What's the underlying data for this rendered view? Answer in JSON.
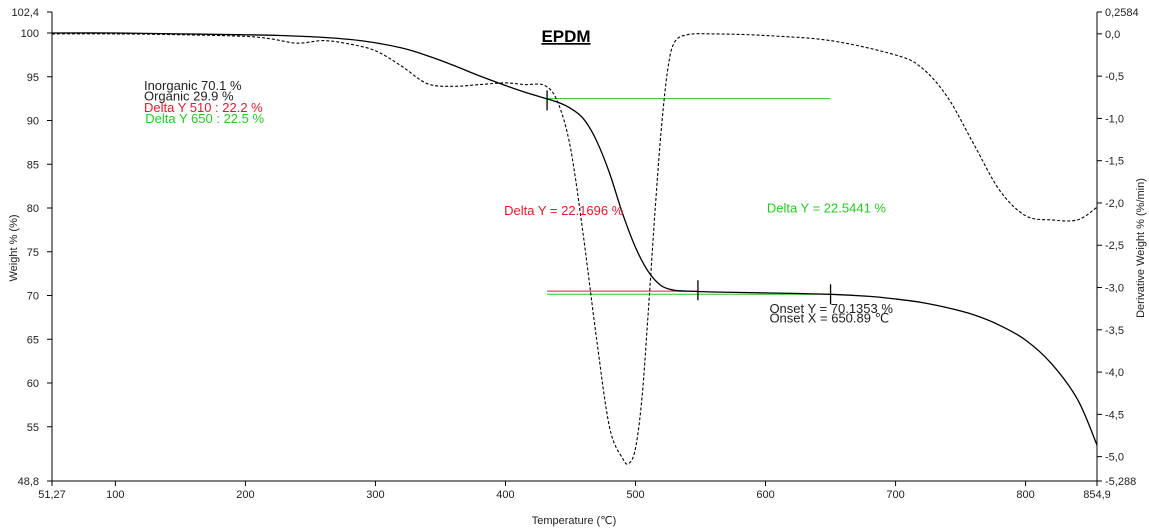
{
  "chart_data": {
    "type": "line",
    "title": "EPDM",
    "xlabel": "Temperature (℃)",
    "ylabel": "Weight % (%)",
    "y2label": "Derivative Weight % (%/min)",
    "xlim": [
      51.27,
      854.9
    ],
    "ylim": [
      48.8,
      102.4
    ],
    "y2lim": [
      -5.288,
      0.2584
    ],
    "x_ticks": [
      100,
      200,
      300,
      400,
      500,
      600,
      700,
      800
    ],
    "x_tick_labels": [
      "100",
      "200",
      "300",
      "400",
      "500",
      "600",
      "700",
      "800"
    ],
    "x_end_labels": [
      "51,27",
      "854,9"
    ],
    "y_ticks": [
      55,
      60,
      65,
      70,
      75,
      80,
      85,
      90,
      95,
      100
    ],
    "y_tick_labels": [
      "55",
      "60",
      "65",
      "70",
      "75",
      "80",
      "85",
      "90",
      "95",
      "100"
    ],
    "y_end_labels": [
      "48,8",
      "102,4"
    ],
    "y2_ticks": [
      -5.0,
      -4.5,
      -4.0,
      -3.5,
      -3.0,
      -2.5,
      -2.0,
      -1.5,
      -1.0,
      -0.5,
      0.0
    ],
    "y2_tick_labels": [
      "-5,0",
      "-4,5",
      "-4,0",
      "-3,5",
      "-3,0",
      "-2,5",
      "-2,0",
      "-1,5",
      "-1,0",
      "-0,5",
      "0,0"
    ],
    "y2_end_labels": [
      "-5,288",
      "0,2584"
    ],
    "series": [
      {
        "axis": "left",
        "style": "solid",
        "color": "#000000",
        "x": [
          51.27,
          100,
          150,
          200,
          230,
          260,
          290,
          320,
          340,
          360,
          380,
          400,
          420,
          440,
          450,
          460,
          470,
          480,
          490,
          500,
          510,
          520,
          530,
          540,
          560,
          600,
          650,
          680,
          700,
          720,
          740,
          760,
          780,
          800,
          820,
          840,
          854.9
        ],
        "y": [
          100,
          100,
          99.9,
          99.8,
          99.7,
          99.5,
          99.1,
          98.3,
          97.4,
          96.3,
          95.1,
          94.0,
          93.0,
          92.1,
          91.4,
          90.2,
          87.7,
          84.0,
          79.4,
          75.5,
          72.7,
          71.1,
          70.6,
          70.5,
          70.4,
          70.3,
          70.14,
          69.9,
          69.6,
          69.2,
          68.6,
          67.8,
          66.6,
          64.9,
          62.2,
          58.1,
          52.9
        ]
      },
      {
        "axis": "right",
        "style": "dashed",
        "color": "#000000",
        "x": [
          51.27,
          100,
          150,
          200,
          220,
          240,
          260,
          280,
          300,
          320,
          340,
          360,
          380,
          400,
          415,
          430,
          440,
          450,
          460,
          470,
          480,
          490,
          495,
          500,
          505,
          510,
          515,
          520,
          525,
          530,
          540,
          560,
          600,
          650,
          700,
          720,
          740,
          760,
          780,
          800,
          820,
          840,
          854.9
        ],
        "y": [
          0.0,
          0.0,
          -0.01,
          -0.03,
          -0.06,
          -0.11,
          -0.08,
          -0.12,
          -0.2,
          -0.38,
          -0.59,
          -0.62,
          -0.6,
          -0.58,
          -0.6,
          -0.61,
          -0.8,
          -1.35,
          -2.4,
          -3.6,
          -4.65,
          -5.02,
          -5.08,
          -4.9,
          -4.3,
          -3.25,
          -2.1,
          -1.1,
          -0.4,
          -0.1,
          -0.01,
          0.0,
          -0.02,
          -0.08,
          -0.25,
          -0.4,
          -0.75,
          -1.3,
          -1.85,
          -2.15,
          -2.2,
          -2.2,
          -2.05
        ]
      }
    ],
    "annotations": [
      {
        "text": "Inorganic 70.1 %",
        "color": "#222222",
        "x": 122,
        "y": 93.5
      },
      {
        "text": "Organic 29.9 %",
        "color": "#222222",
        "x": 122,
        "y": 92.3
      },
      {
        "text": "Delta Y 510 : 22.2 %",
        "color": "#e8192c",
        "x": 122,
        "y": 91.0
      },
      {
        "text": "Delta Y 650 : 22.5 %",
        "color": "#22cc22",
        "x": 123,
        "y": 89.7
      },
      {
        "text": "Delta Y = 22.1696 %",
        "color": "#e8192c",
        "x": 399,
        "y": 79.2
      },
      {
        "text": "Delta Y = 22.5441 %",
        "color": "#22cc22",
        "x": 601,
        "y": 79.5
      },
      {
        "text": "Onset Y = 70.1353 %",
        "color": "#222222",
        "x": 603,
        "y": 68.0
      },
      {
        "text": "Onset X = 650.89 ℃",
        "color": "#222222",
        "x": 603,
        "y": 66.9
      }
    ],
    "reference_lines": [
      {
        "color": "#22cc22",
        "x1": 432,
        "x2": 650,
        "y": 92.5
      },
      {
        "color": "#e8192c",
        "x1": 432,
        "x2": 548,
        "y": 70.5
      },
      {
        "color": "#22cc22",
        "x1": 432,
        "x2": 650,
        "y": 70.14
      }
    ],
    "markers": [
      {
        "x": 432,
        "y": 92.3
      },
      {
        "x": 548,
        "y": 70.6
      },
      {
        "x": 650,
        "y": 70.14
      }
    ],
    "grid": false,
    "legend": "none"
  }
}
